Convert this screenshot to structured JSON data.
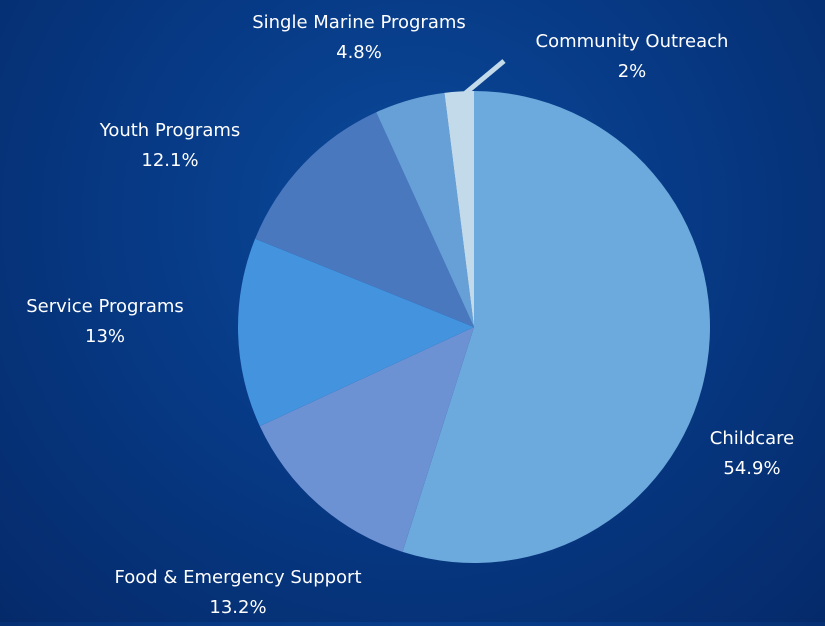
{
  "chart_data": {
    "type": "pie",
    "title": "",
    "start_angle_deg": 0,
    "direction": "clockwise",
    "slices": [
      {
        "label": "Childcare",
        "value": 54.9,
        "value_label": "54.9%",
        "color": "#6ca9dc"
      },
      {
        "label": "Food & Emergency Support",
        "value": 13.2,
        "value_label": "13.2%",
        "color": "#6d92d4"
      },
      {
        "label": "Service Programs",
        "value": 13,
        "value_label": "13%",
        "color": "#4393df"
      },
      {
        "label": "Youth Programs",
        "value": 12.1,
        "value_label": "12.1%",
        "color": "#4978bf"
      },
      {
        "label": "Single Marine Programs",
        "value": 4.8,
        "value_label": "4.8%",
        "color": "#67a0d6"
      },
      {
        "label": "Community Outreach",
        "value": 2,
        "value_label": "2%",
        "color": "#c3daea"
      }
    ]
  }
}
